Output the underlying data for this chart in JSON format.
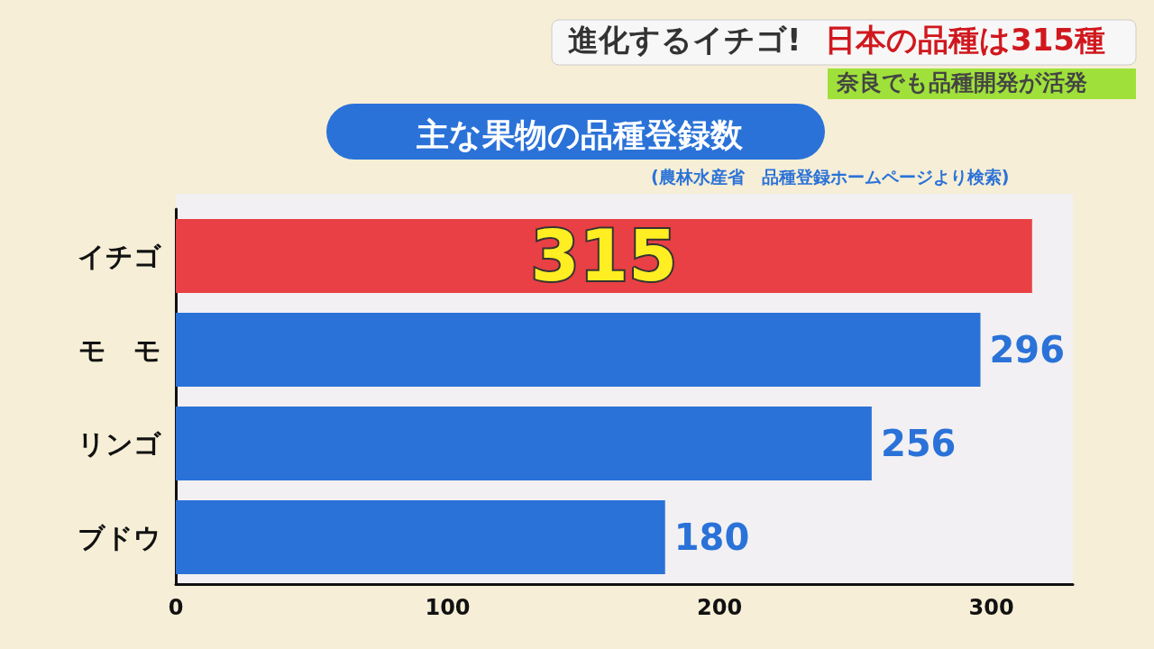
{
  "chart_data": {
    "type": "bar",
    "orientation": "horizontal",
    "title": "主な果物の品種登録数",
    "annotations": [
      "進化するイチゴ!",
      "日本の品種は315種",
      "奈良でも品種開発が活発",
      "(農林水産省　品種登録ホームページより検索)"
    ],
    "categories": [
      "イチゴ",
      "モ　モ",
      "リンゴ",
      "ブドウ"
    ],
    "values": [
      315,
      296,
      256,
      180
    ],
    "colors": [
      "#e84044",
      "#2a72d8",
      "#2a72d8",
      "#2a72d8"
    ],
    "xlim": [
      0,
      330
    ],
    "xticks": [
      0,
      100,
      200,
      300
    ],
    "grid": false,
    "data_labels": true
  }
}
